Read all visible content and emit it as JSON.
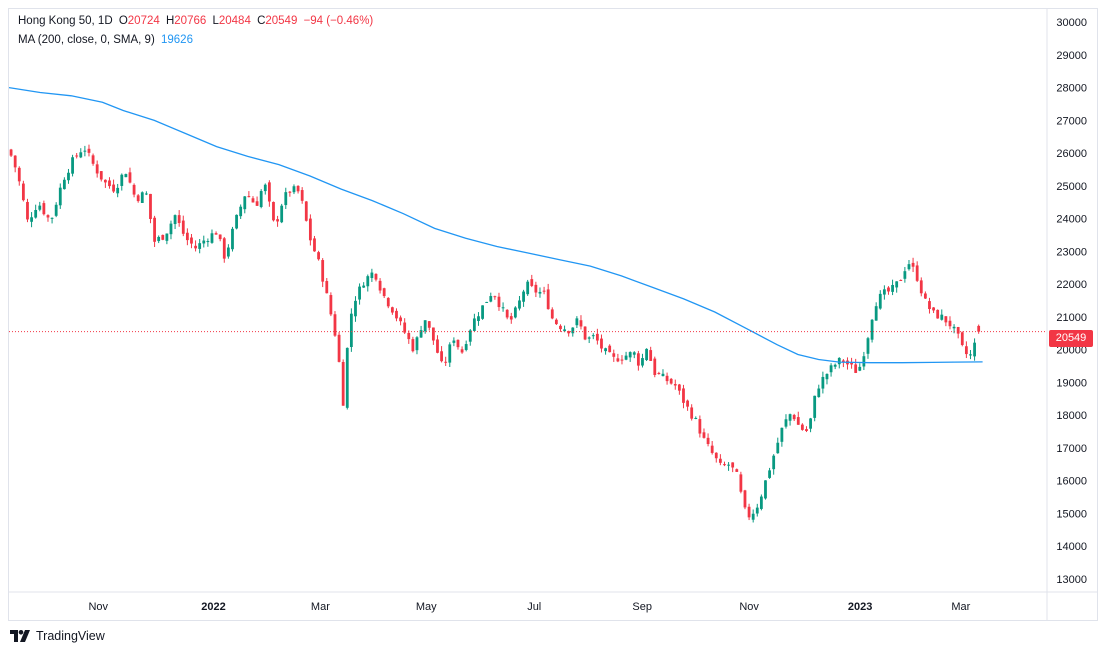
{
  "legend": {
    "symbol": "Hong Kong 50, 1D",
    "o_label": "O",
    "open": "20724",
    "h_label": "H",
    "high": "20766",
    "l_label": "L",
    "low": "20484",
    "c_label": "C",
    "close": "20549",
    "change": "−94 (−0.46%)",
    "ma_label": "MA (200, close, 0, SMA, 9)",
    "ma_value": "19626"
  },
  "price_tag": "20549",
  "footer": {
    "brand": "TradingView"
  },
  "colors": {
    "up": "#089981",
    "down": "#f23645",
    "ma": "#2196f3",
    "grid": "#f0f3fa",
    "axis_text": "#131722",
    "last_price_line": "#f23645"
  },
  "chart_data": {
    "type": "candlestick",
    "series_name": "Hong Kong 50, 1D",
    "ylim": [
      12600,
      30400
    ],
    "y_ticks": [
      13000,
      14000,
      15000,
      16000,
      17000,
      18000,
      19000,
      20000,
      21000,
      22000,
      23000,
      24000,
      25000,
      26000,
      27000,
      28000,
      29000,
      30000
    ],
    "x_ticks": [
      {
        "label": "Nov",
        "pos": 0.086
      },
      {
        "label": "2022",
        "pos": 0.197
      },
      {
        "label": "Mar",
        "pos": 0.3
      },
      {
        "label": "May",
        "pos": 0.402
      },
      {
        "label": "Jul",
        "pos": 0.506
      },
      {
        "label": "Sep",
        "pos": 0.61
      },
      {
        "label": "Nov",
        "pos": 0.713
      },
      {
        "label": "2023",
        "pos": 0.82
      },
      {
        "label": "Mar",
        "pos": 0.917
      }
    ],
    "grid": false,
    "last_price": 20549,
    "close_path": [
      [
        0.0,
        26100
      ],
      [
        0.008,
        25400
      ],
      [
        0.018,
        23900
      ],
      [
        0.028,
        24500
      ],
      [
        0.04,
        23900
      ],
      [
        0.052,
        25200
      ],
      [
        0.062,
        25800
      ],
      [
        0.072,
        26200
      ],
      [
        0.082,
        25600
      ],
      [
        0.092,
        25100
      ],
      [
        0.102,
        24900
      ],
      [
        0.112,
        25500
      ],
      [
        0.122,
        24600
      ],
      [
        0.132,
        24800
      ],
      [
        0.14,
        23300
      ],
      [
        0.15,
        23500
      ],
      [
        0.16,
        24100
      ],
      [
        0.17,
        23400
      ],
      [
        0.18,
        23100
      ],
      [
        0.19,
        23400
      ],
      [
        0.2,
        23600
      ],
      [
        0.208,
        22800
      ],
      [
        0.218,
        23900
      ],
      [
        0.228,
        24800
      ],
      [
        0.238,
        24400
      ],
      [
        0.246,
        25100
      ],
      [
        0.256,
        23700
      ],
      [
        0.264,
        24600
      ],
      [
        0.272,
        24900
      ],
      [
        0.28,
        24800
      ],
      [
        0.29,
        23400
      ],
      [
        0.3,
        22500
      ],
      [
        0.31,
        21100
      ],
      [
        0.316,
        20200
      ],
      [
        0.322,
        18400
      ],
      [
        0.328,
        20900
      ],
      [
        0.334,
        21600
      ],
      [
        0.342,
        22100
      ],
      [
        0.352,
        22400
      ],
      [
        0.36,
        21700
      ],
      [
        0.37,
        21200
      ],
      [
        0.38,
        20600
      ],
      [
        0.39,
        20000
      ],
      [
        0.4,
        21000
      ],
      [
        0.41,
        20200
      ],
      [
        0.418,
        19400
      ],
      [
        0.428,
        20400
      ],
      [
        0.436,
        19900
      ],
      [
        0.446,
        20800
      ],
      [
        0.456,
        21300
      ],
      [
        0.466,
        21800
      ],
      [
        0.474,
        21300
      ],
      [
        0.482,
        20800
      ],
      [
        0.49,
        21300
      ],
      [
        0.498,
        22000
      ],
      [
        0.506,
        21800
      ],
      [
        0.516,
        21700
      ],
      [
        0.524,
        20900
      ],
      [
        0.532,
        20700
      ],
      [
        0.54,
        20600
      ],
      [
        0.548,
        20900
      ],
      [
        0.556,
        20300
      ],
      [
        0.564,
        20400
      ],
      [
        0.572,
        20000
      ],
      [
        0.582,
        19700
      ],
      [
        0.592,
        19800
      ],
      [
        0.602,
        19900
      ],
      [
        0.608,
        19500
      ],
      [
        0.614,
        20100
      ],
      [
        0.622,
        19300
      ],
      [
        0.632,
        19100
      ],
      [
        0.642,
        18900
      ],
      [
        0.652,
        18300
      ],
      [
        0.662,
        17800
      ],
      [
        0.67,
        17200
      ],
      [
        0.678,
        16800
      ],
      [
        0.686,
        16400
      ],
      [
        0.694,
        16500
      ],
      [
        0.702,
        16100
      ],
      [
        0.708,
        15100
      ],
      [
        0.714,
        14900
      ],
      [
        0.722,
        15300
      ],
      [
        0.73,
        16100
      ],
      [
        0.738,
        16900
      ],
      [
        0.746,
        17700
      ],
      [
        0.754,
        18100
      ],
      [
        0.762,
        17600
      ],
      [
        0.77,
        17500
      ],
      [
        0.778,
        18800
      ],
      [
        0.786,
        19200
      ],
      [
        0.794,
        19500
      ],
      [
        0.802,
        19700
      ],
      [
        0.81,
        19500
      ],
      [
        0.818,
        19300
      ],
      [
        0.826,
        20200
      ],
      [
        0.834,
        21400
      ],
      [
        0.842,
        21700
      ],
      [
        0.85,
        21800
      ],
      [
        0.858,
        22100
      ],
      [
        0.866,
        22700
      ],
      [
        0.874,
        22300
      ],
      [
        0.882,
        21500
      ],
      [
        0.89,
        21100
      ],
      [
        0.898,
        21000
      ],
      [
        0.906,
        20800
      ],
      [
        0.914,
        20400
      ],
      [
        0.92,
        19900
      ],
      [
        0.926,
        19800
      ],
      [
        0.932,
        20300
      ],
      [
        0.938,
        20549
      ]
    ],
    "ma_path": [
      [
        0.0,
        28000
      ],
      [
        0.03,
        27850
      ],
      [
        0.06,
        27750
      ],
      [
        0.09,
        27550
      ],
      [
        0.11,
        27300
      ],
      [
        0.14,
        27000
      ],
      [
        0.17,
        26600
      ],
      [
        0.2,
        26200
      ],
      [
        0.23,
        25900
      ],
      [
        0.26,
        25650
      ],
      [
        0.29,
        25300
      ],
      [
        0.32,
        24900
      ],
      [
        0.35,
        24550
      ],
      [
        0.38,
        24150
      ],
      [
        0.41,
        23700
      ],
      [
        0.44,
        23400
      ],
      [
        0.47,
        23150
      ],
      [
        0.5,
        22950
      ],
      [
        0.53,
        22750
      ],
      [
        0.56,
        22550
      ],
      [
        0.59,
        22250
      ],
      [
        0.62,
        21900
      ],
      [
        0.65,
        21550
      ],
      [
        0.68,
        21150
      ],
      [
        0.71,
        20650
      ],
      [
        0.74,
        20150
      ],
      [
        0.76,
        19850
      ],
      [
        0.78,
        19700
      ],
      [
        0.8,
        19620
      ],
      [
        0.83,
        19600
      ],
      [
        0.86,
        19600
      ],
      [
        0.89,
        19610
      ],
      [
        0.91,
        19620
      ],
      [
        0.938,
        19626
      ]
    ]
  }
}
